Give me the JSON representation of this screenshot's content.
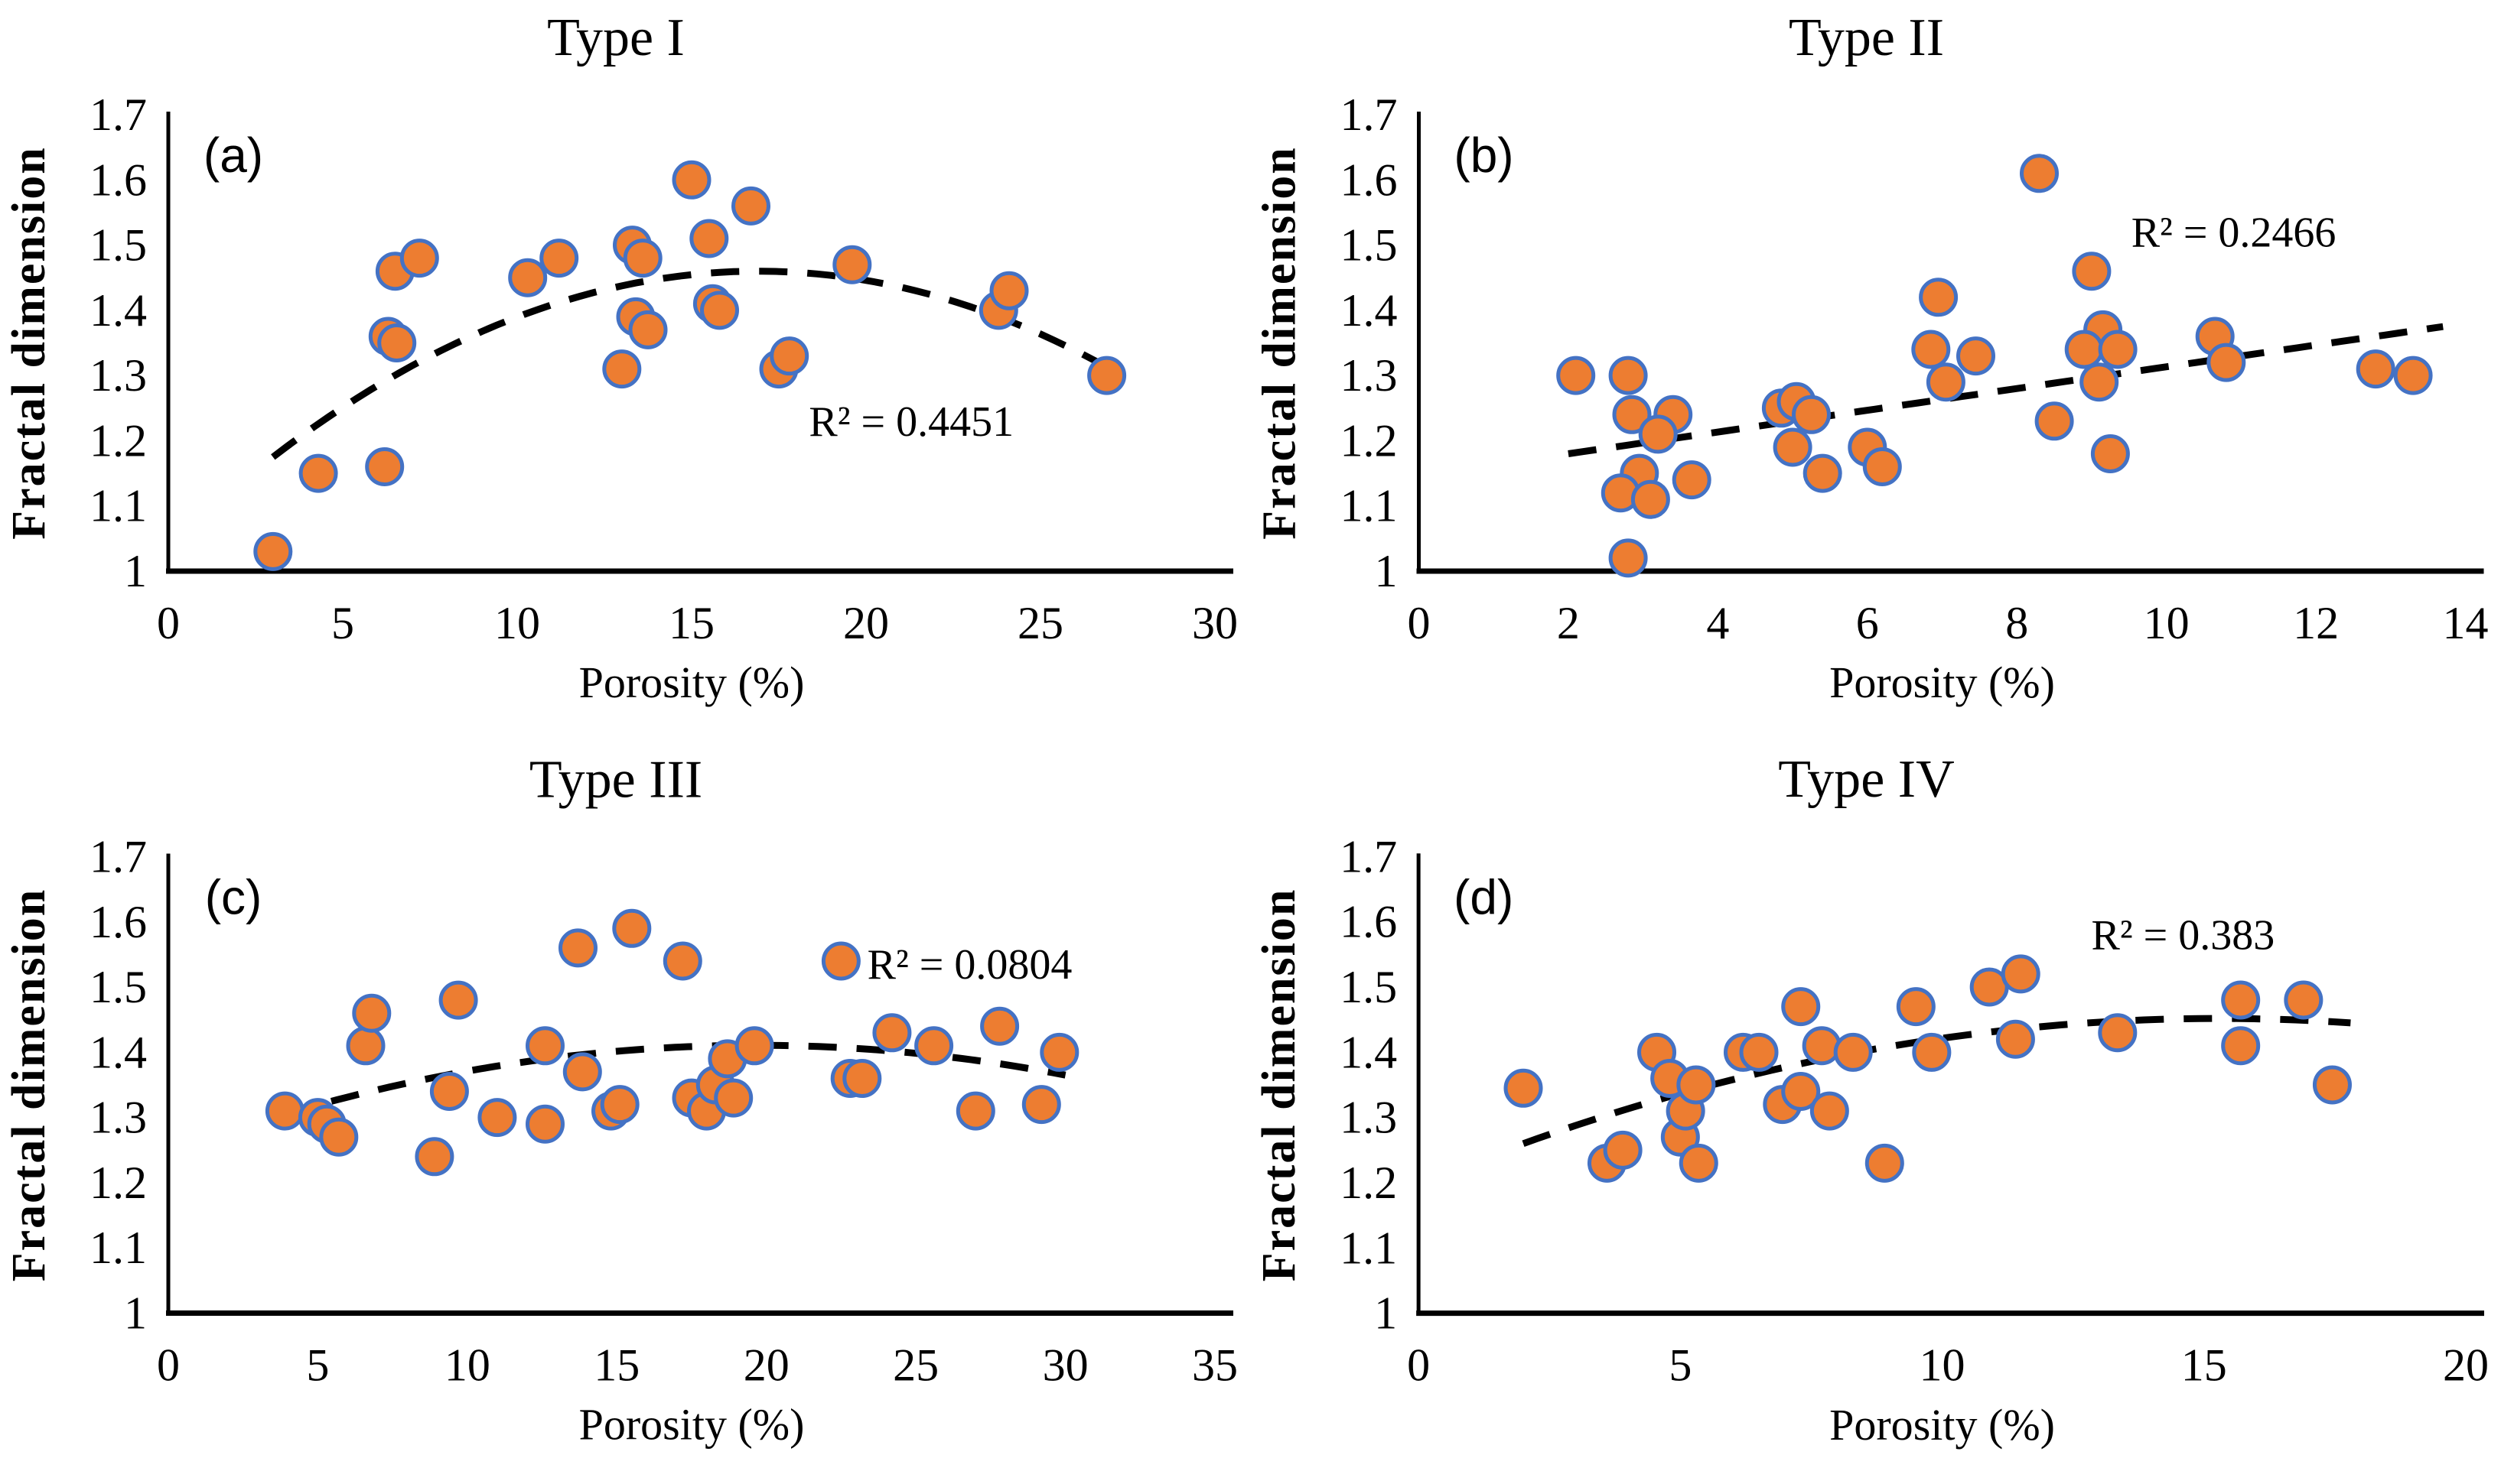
{
  "figure": {
    "background": "#ffffff",
    "marker_fill": "#ED7D31",
    "marker_stroke": "#4472C4",
    "trend_color": "#000000",
    "axis_color": "#000000"
  },
  "chart_data": [
    {
      "type": "scatter",
      "panel_letter": "(a)",
      "title": "Type I",
      "xlabel": "Porosity (%)",
      "ylabel": "Fractal dimension",
      "xlim": [
        0,
        30
      ],
      "ylim": [
        1,
        1.7
      ],
      "xticks": [
        0,
        5,
        10,
        15,
        20,
        25,
        30
      ],
      "yticks": [
        1,
        1.1,
        1.2,
        1.3,
        1.4,
        1.5,
        1.6,
        1.7
      ],
      "grid": false,
      "points": [
        [
          3.0,
          1.03
        ],
        [
          4.3,
          1.15
        ],
        [
          6.2,
          1.16
        ],
        [
          6.3,
          1.36
        ],
        [
          6.55,
          1.35
        ],
        [
          6.5,
          1.46
        ],
        [
          7.2,
          1.48
        ],
        [
          10.3,
          1.45
        ],
        [
          11.2,
          1.48
        ],
        [
          13.0,
          1.31
        ],
        [
          13.3,
          1.5
        ],
        [
          13.6,
          1.48
        ],
        [
          13.4,
          1.39
        ],
        [
          13.75,
          1.37
        ],
        [
          15.0,
          1.6
        ],
        [
          15.5,
          1.51
        ],
        [
          15.6,
          1.41
        ],
        [
          15.8,
          1.4
        ],
        [
          16.7,
          1.56
        ],
        [
          17.5,
          1.31
        ],
        [
          17.8,
          1.33
        ],
        [
          19.6,
          1.47
        ],
        [
          23.8,
          1.4
        ],
        [
          24.1,
          1.43
        ],
        [
          26.9,
          1.3
        ]
      ],
      "trendline": {
        "type": "polynomial2",
        "style": "dashed",
        "coefficients": [
          -0.0014732,
          0.049821,
          1.038795
        ],
        "x_range": [
          3.0,
          27.0
        ]
      },
      "r2_label": {
        "text": "R² = 0.4451",
        "x": 21.3,
        "y": 1.23
      }
    },
    {
      "type": "scatter",
      "panel_letter": "(b)",
      "title": "Type II",
      "xlabel": "Porosity (%)",
      "ylabel": "Fractal dimension",
      "xlim": [
        0,
        14
      ],
      "ylim": [
        1,
        1.7
      ],
      "xticks": [
        0,
        2,
        4,
        6,
        8,
        10,
        12,
        14
      ],
      "yticks": [
        1,
        1.1,
        1.2,
        1.3,
        1.4,
        1.5,
        1.6,
        1.7
      ],
      "grid": false,
      "points": [
        [
          2.1,
          1.3
        ],
        [
          2.8,
          1.3
        ],
        [
          2.85,
          1.24
        ],
        [
          3.4,
          1.24
        ],
        [
          3.2,
          1.21
        ],
        [
          2.95,
          1.15
        ],
        [
          2.7,
          1.12
        ],
        [
          3.1,
          1.11
        ],
        [
          3.65,
          1.14
        ],
        [
          2.8,
          1.02
        ],
        [
          4.85,
          1.25
        ],
        [
          5.05,
          1.26
        ],
        [
          5.25,
          1.24
        ],
        [
          5.0,
          1.19
        ],
        [
          5.4,
          1.15
        ],
        [
          6.0,
          1.19
        ],
        [
          6.2,
          1.16
        ],
        [
          6.85,
          1.34
        ],
        [
          6.95,
          1.42
        ],
        [
          7.05,
          1.29
        ],
        [
          7.45,
          1.33
        ],
        [
          8.3,
          1.61
        ],
        [
          8.5,
          1.23
        ],
        [
          9.0,
          1.46
        ],
        [
          9.15,
          1.37
        ],
        [
          8.9,
          1.34
        ],
        [
          9.35,
          1.34
        ],
        [
          9.1,
          1.29
        ],
        [
          9.25,
          1.18
        ],
        [
          10.65,
          1.36
        ],
        [
          10.8,
          1.32
        ],
        [
          12.8,
          1.31
        ],
        [
          13.3,
          1.3
        ]
      ],
      "trendline": {
        "type": "linear",
        "style": "dashed",
        "coefficients": [
          0.016667,
          1.14667
        ],
        "x_range": [
          2.0,
          13.7
        ]
      },
      "r2_label": {
        "text": "R² = 0.2466",
        "x": 10.9,
        "y": 1.52
      }
    },
    {
      "type": "scatter",
      "panel_letter": "(c)",
      "title": "Type III",
      "xlabel": "Porosity (%)",
      "ylabel": "Fractal dimension",
      "xlim": [
        0,
        35
      ],
      "ylim": [
        1,
        1.7
      ],
      "xticks": [
        0,
        5,
        10,
        15,
        20,
        25,
        30,
        35
      ],
      "yticks": [
        1,
        1.1,
        1.2,
        1.3,
        1.4,
        1.5,
        1.6,
        1.7
      ],
      "grid": false,
      "points": [
        [
          3.9,
          1.31
        ],
        [
          5.0,
          1.3
        ],
        [
          5.3,
          1.29
        ],
        [
          5.7,
          1.27
        ],
        [
          6.6,
          1.41
        ],
        [
          6.8,
          1.46
        ],
        [
          8.9,
          1.24
        ],
        [
          9.4,
          1.34
        ],
        [
          9.7,
          1.48
        ],
        [
          11.0,
          1.3
        ],
        [
          12.6,
          1.41
        ],
        [
          12.6,
          1.29
        ],
        [
          13.7,
          1.56
        ],
        [
          13.85,
          1.37
        ],
        [
          14.8,
          1.31
        ],
        [
          15.1,
          1.32
        ],
        [
          15.5,
          1.59
        ],
        [
          17.2,
          1.54
        ],
        [
          17.5,
          1.33
        ],
        [
          18.0,
          1.31
        ],
        [
          18.3,
          1.35
        ],
        [
          18.7,
          1.39
        ],
        [
          18.9,
          1.33
        ],
        [
          19.6,
          1.41
        ],
        [
          22.5,
          1.54
        ],
        [
          22.8,
          1.36
        ],
        [
          23.2,
          1.36
        ],
        [
          24.2,
          1.43
        ],
        [
          25.6,
          1.41
        ],
        [
          27.0,
          1.31
        ],
        [
          27.8,
          1.44
        ],
        [
          29.2,
          1.32
        ],
        [
          29.8,
          1.4
        ]
      ],
      "trendline": {
        "type": "polynomial2",
        "style": "dashed",
        "coefficients": [
          -0.0004268,
          0.016767,
          1.246101
        ],
        "x_range": [
          3.9,
          30.0
        ]
      },
      "r2_label": {
        "text": "R² = 0.0804",
        "x": 26.8,
        "y": 1.535
      }
    },
    {
      "type": "scatter",
      "panel_letter": "(d)",
      "title": "Type IV",
      "xlabel": "Porosity (%)",
      "ylabel": "Fractal dimension",
      "xlim": [
        0,
        20
      ],
      "ylim": [
        1,
        1.7
      ],
      "xticks": [
        0,
        5,
        10,
        15,
        20
      ],
      "yticks": [
        1,
        1.1,
        1.2,
        1.3,
        1.4,
        1.5,
        1.6,
        1.7
      ],
      "grid": false,
      "points": [
        [
          2.0,
          1.345
        ],
        [
          3.6,
          1.23
        ],
        [
          3.9,
          1.25
        ],
        [
          4.55,
          1.4
        ],
        [
          4.8,
          1.36
        ],
        [
          5.0,
          1.27
        ],
        [
          5.1,
          1.31
        ],
        [
          5.3,
          1.35
        ],
        [
          5.35,
          1.23
        ],
        [
          6.2,
          1.4
        ],
        [
          6.5,
          1.4
        ],
        [
          6.95,
          1.32
        ],
        [
          7.3,
          1.47
        ],
        [
          7.3,
          1.34
        ],
        [
          7.7,
          1.41
        ],
        [
          7.85,
          1.31
        ],
        [
          8.3,
          1.4
        ],
        [
          8.9,
          1.23
        ],
        [
          9.5,
          1.47
        ],
        [
          9.8,
          1.4
        ],
        [
          10.9,
          1.5
        ],
        [
          11.4,
          1.42
        ],
        [
          11.5,
          1.52
        ],
        [
          13.35,
          1.43
        ],
        [
          15.7,
          1.48
        ],
        [
          15.7,
          1.41
        ],
        [
          16.9,
          1.48
        ],
        [
          17.45,
          1.35
        ]
      ],
      "trendline": {
        "type": "polynomial2",
        "style": "dashed",
        "coefficients": [
          -0.0010854,
          0.0331997,
          1.1979422
        ],
        "x_range": [
          2.0,
          17.8
        ]
      },
      "r2_label": {
        "text": "R² = 0.383",
        "x": 14.6,
        "y": 1.58
      }
    }
  ]
}
